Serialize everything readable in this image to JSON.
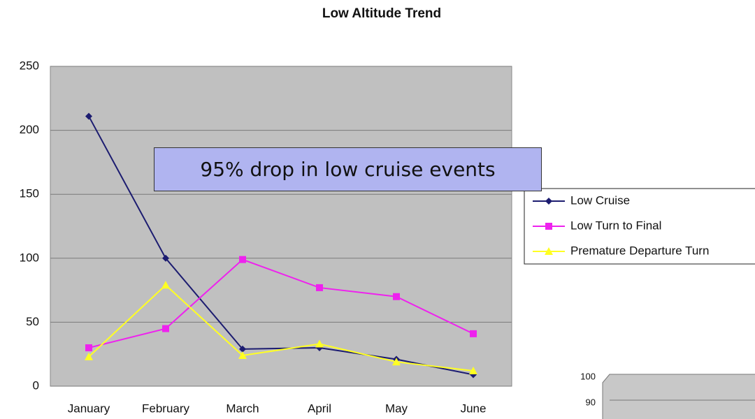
{
  "chart_data": [
    {
      "type": "line",
      "title": "Low Altitude Trend",
      "categories": [
        "January",
        "February",
        "March",
        "April",
        "May",
        "June"
      ],
      "series": [
        {
          "name": "Low Cruise",
          "color": "#1c1c70",
          "marker": "diamond",
          "values": [
            211,
            100,
            29,
            30,
            21,
            9
          ]
        },
        {
          "name": "Low Turn to Final",
          "color": "#ee22ee",
          "marker": "square",
          "values": [
            30,
            45,
            99,
            77,
            70,
            41
          ]
        },
        {
          "name": "Premature Departure Turn",
          "color": "#ffff22",
          "marker": "triangle",
          "values": [
            23,
            79,
            24,
            33,
            19,
            12
          ]
        }
      ],
      "ylim": [
        0,
        250
      ],
      "yticks": [
        0,
        50,
        100,
        150,
        200,
        250
      ],
      "grid": true,
      "annotation": "95% drop in low cruise events",
      "legend": "right"
    },
    {
      "type": "bar",
      "ylim": [
        0,
        100
      ],
      "yticks": [
        90,
        100
      ],
      "grid": true
    }
  ]
}
